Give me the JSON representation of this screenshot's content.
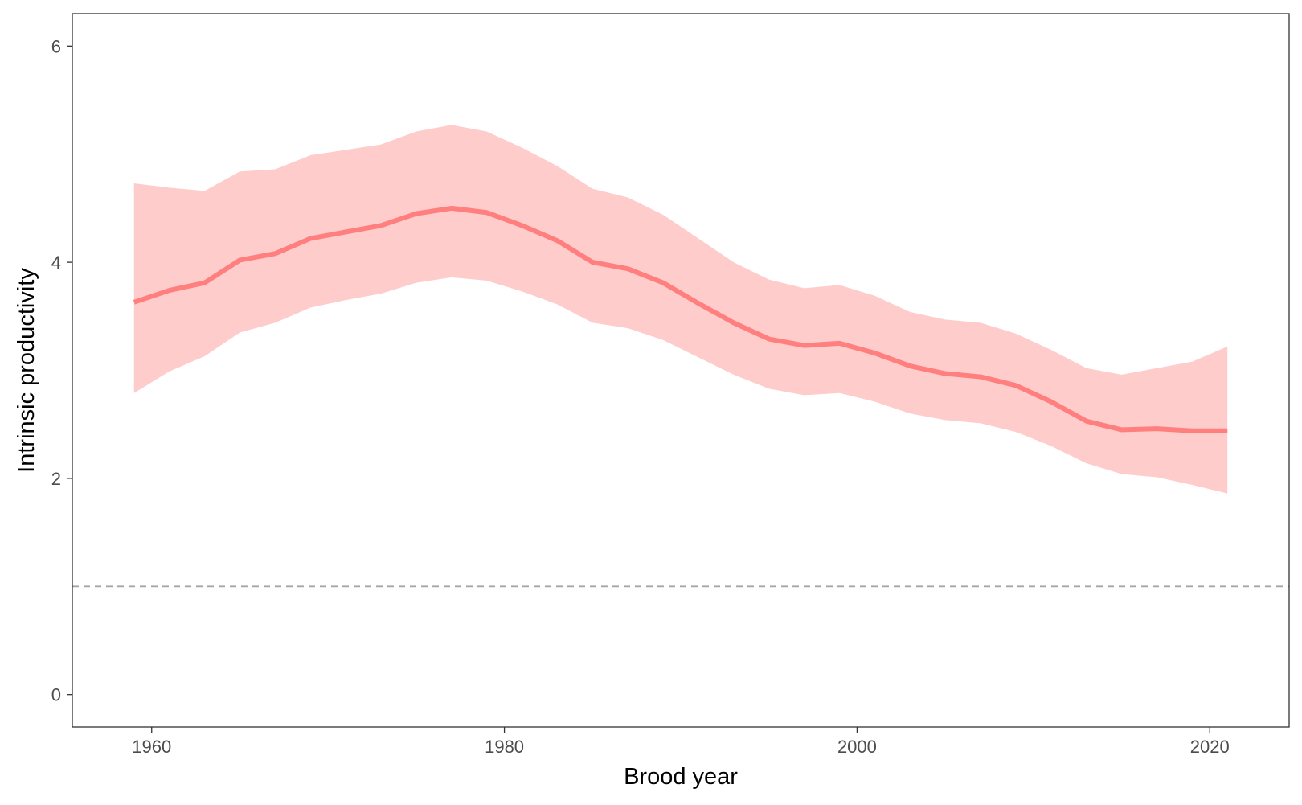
{
  "chart_data": {
    "type": "line",
    "xlabel": "Brood year",
    "ylabel": "Intrinsic productivity",
    "xlim": [
      1955.5,
      2024.5
    ],
    "ylim": [
      -0.3,
      6.3
    ],
    "x_ticks": [
      1960,
      1980,
      2000,
      2020
    ],
    "y_ticks": [
      0,
      2,
      4,
      6
    ],
    "grid": false,
    "reference_line": {
      "y": 1,
      "style": "dashed",
      "color": "#a6a6a6"
    },
    "series": [
      {
        "color": "#ff7f7f",
        "band_color": "#ffcccc",
        "x": [
          1959,
          1961,
          1963,
          1965,
          1967,
          1969,
          1971,
          1973,
          1975,
          1977,
          1979,
          1981,
          1983,
          1985,
          1987,
          1989,
          1991,
          1993,
          1995,
          1997,
          1999,
          2001,
          2003,
          2005,
          2007,
          2009,
          2011,
          2013,
          2015,
          2017,
          2019,
          2021
        ],
        "y": [
          3.63,
          3.74,
          3.81,
          4.02,
          4.08,
          4.22,
          4.28,
          4.34,
          4.45,
          4.5,
          4.46,
          4.34,
          4.2,
          4.0,
          3.94,
          3.81,
          3.62,
          3.44,
          3.29,
          3.23,
          3.25,
          3.16,
          3.04,
          2.97,
          2.94,
          2.86,
          2.71,
          2.53,
          2.45,
          2.46,
          2.44,
          2.44
        ],
        "lower": [
          2.79,
          2.99,
          3.13,
          3.35,
          3.44,
          3.58,
          3.65,
          3.71,
          3.81,
          3.86,
          3.83,
          3.73,
          3.61,
          3.44,
          3.39,
          3.28,
          3.12,
          2.96,
          2.83,
          2.77,
          2.79,
          2.71,
          2.6,
          2.54,
          2.51,
          2.43,
          2.3,
          2.14,
          2.04,
          2.01,
          1.94,
          1.86
        ],
        "upper": [
          4.73,
          4.69,
          4.66,
          4.84,
          4.86,
          4.99,
          5.04,
          5.09,
          5.21,
          5.27,
          5.21,
          5.06,
          4.89,
          4.68,
          4.6,
          4.44,
          4.22,
          4.0,
          3.84,
          3.76,
          3.79,
          3.69,
          3.54,
          3.47,
          3.44,
          3.34,
          3.19,
          3.02,
          2.96,
          3.02,
          3.08,
          3.22
        ]
      }
    ]
  }
}
